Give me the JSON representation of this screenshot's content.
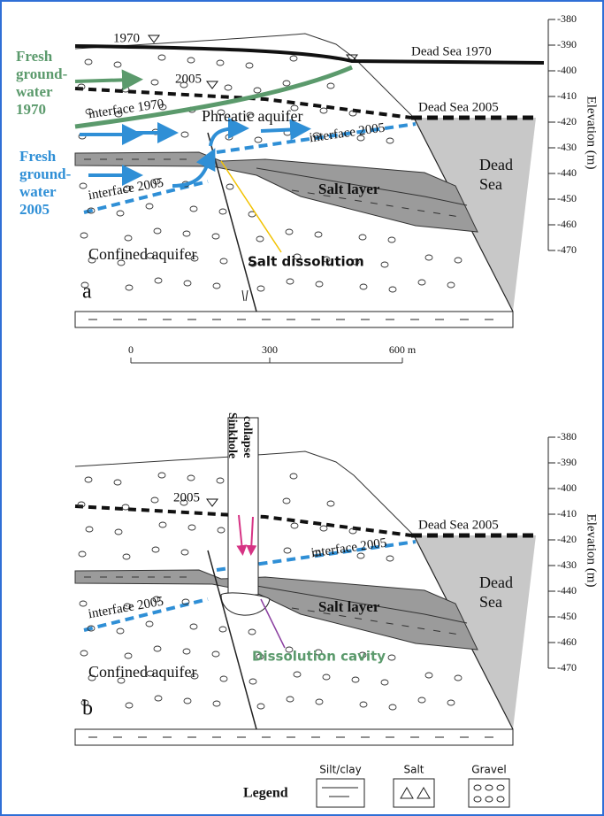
{
  "panel_a": {
    "letter": "a",
    "water_level_1970": "1970",
    "dead_sea_1970": "Dead Sea 1970",
    "fresh_groundwater_1970": [
      "Fresh",
      "ground-",
      "water",
      "1970"
    ],
    "water_level_2005": "2005",
    "interface_1970": "interface 1970",
    "dead_sea_2005": "Dead Sea 2005",
    "phreatic_aquifer": "Phreatic aquifer",
    "interface_2005_upper": "interface 2005",
    "interface_2005_lower": "interface 2005",
    "fresh_groundwater_2005": [
      "Fresh",
      "ground-",
      "water",
      "2005"
    ],
    "dead_sea": [
      "Dead",
      "Sea"
    ],
    "salt_layer": "Salt layer",
    "salt_dissolution": "Salt dissolution",
    "confined_aquifer": "Confined aquifer"
  },
  "elevation_axis": {
    "label": "Elevation (m)",
    "ticks": [
      -380,
      -390,
      -400,
      -410,
      -420,
      -430,
      -440,
      -450,
      -460,
      -470
    ]
  },
  "scale_bar": {
    "ticks": [
      "0",
      "300",
      "600 m"
    ]
  },
  "panel_b": {
    "letter": "b",
    "sinkhole_collapse": [
      "Sinkhole",
      "collapse"
    ],
    "water_level_2005": "2005",
    "dead_sea_2005": "Dead Sea 2005",
    "interface_2005_upper": "interface 2005",
    "interface_2005_lower": "interface 2005",
    "dead_sea": [
      "Dead",
      "Sea"
    ],
    "salt_layer": "Salt layer",
    "dissolution_cavity": "Dissolution cavity",
    "confined_aquifer": "Confined aquifer"
  },
  "legend": {
    "title": "Legend",
    "items": [
      "Silt/clay",
      "Salt",
      "Gravel"
    ]
  }
}
